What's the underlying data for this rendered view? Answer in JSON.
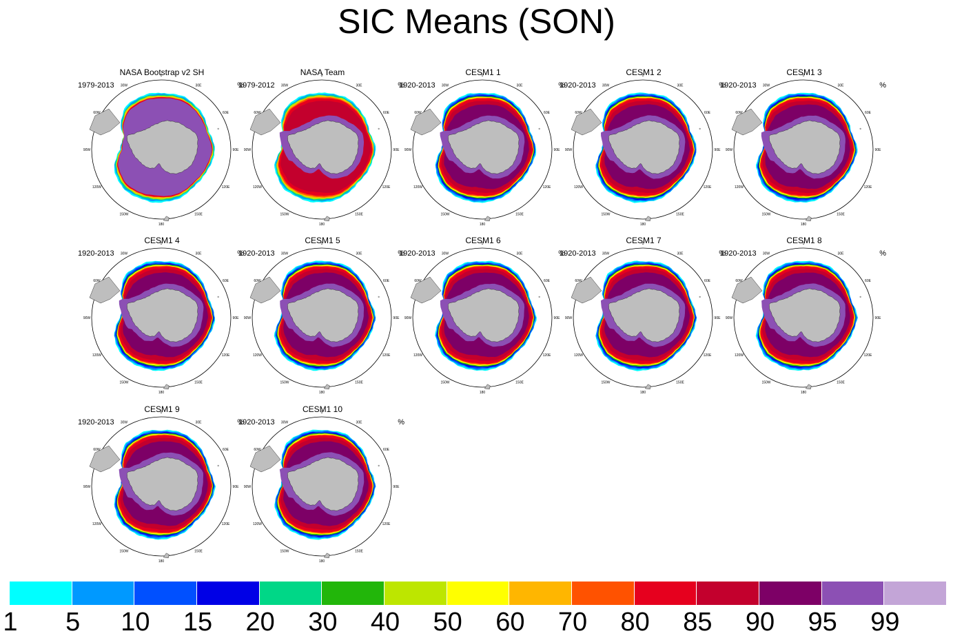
{
  "title": "SIC Means (SON)",
  "chart_data": {
    "type": "heatmap",
    "title": "SIC Means (SON)",
    "projection": "south polar stereographic",
    "variable": "Sea ice concentration (%)",
    "longitude_labels": [
      "0",
      "30E",
      "60E",
      "90E",
      "120E",
      "150E",
      "180",
      "150W",
      "120W",
      "90W",
      "60W",
      "30W"
    ],
    "colorbar": {
      "levels": [
        "1",
        "5",
        "10",
        "15",
        "20",
        "30",
        "40",
        "50",
        "60",
        "70",
        "80",
        "85",
        "90",
        "95",
        "99"
      ],
      "colors": [
        "#00ffff",
        "#0099ff",
        "#0050ff",
        "#0000e6",
        "#00d787",
        "#22b60a",
        "#bde600",
        "#ffff00",
        "#ffb600",
        "#ff5200",
        "#e6001e",
        "#c3002d",
        "#7d0066",
        "#8c50b4",
        "#c3a5d7"
      ]
    },
    "panels": [
      {
        "title": "NASA Bootstrap v2 SH",
        "period": "1979-2013",
        "unit": "%",
        "style": "obs_bootstrap"
      },
      {
        "title": "NASA Team",
        "period": "1979-2012",
        "unit": "%",
        "style": "obs_team"
      },
      {
        "title": "CESM1 1",
        "period": "1920-2013",
        "unit": "%",
        "style": "model"
      },
      {
        "title": "CESM1 2",
        "period": "1920-2013",
        "unit": "%",
        "style": "model"
      },
      {
        "title": "CESM1 3",
        "period": "1920-2013",
        "unit": "%",
        "style": "model"
      },
      {
        "title": "CESM1 4",
        "period": "1920-2013",
        "unit": "%",
        "style": "model"
      },
      {
        "title": "CESM1 5",
        "period": "1920-2013",
        "unit": "%",
        "style": "model"
      },
      {
        "title": "CESM1 6",
        "period": "1920-2013",
        "unit": "%",
        "style": "model"
      },
      {
        "title": "CESM1 7",
        "period": "1920-2013",
        "unit": "%",
        "style": "model"
      },
      {
        "title": "CESM1 8",
        "period": "1920-2013",
        "unit": "%",
        "style": "model"
      },
      {
        "title": "CESM1 9",
        "period": "1920-2013",
        "unit": "%",
        "style": "model"
      },
      {
        "title": "CESM1 10",
        "period": "1920-2013",
        "unit": "%",
        "style": "model"
      }
    ]
  }
}
